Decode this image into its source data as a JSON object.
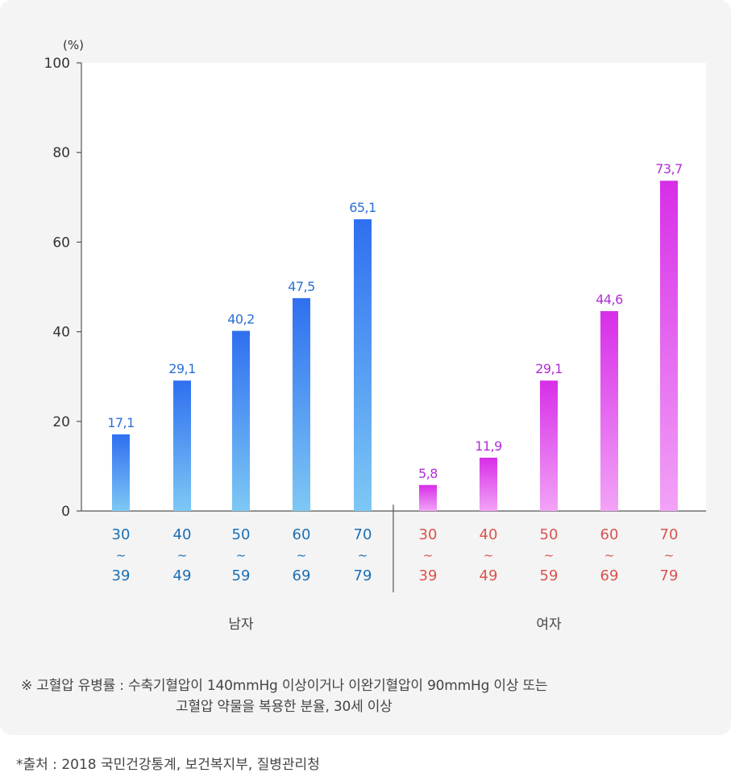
{
  "chart_data": {
    "type": "bar",
    "unit_label": "(%)",
    "ylim": [
      0,
      100
    ],
    "yticks": [
      "0",
      "20",
      "40",
      "60",
      "80",
      "100"
    ],
    "groups": [
      {
        "name": "남자",
        "color_top": "#2f6ff0",
        "color_bottom": "#7dc8f5",
        "label_color": "#2b6fd6",
        "tick_color": "#1a6fb5",
        "categories": [
          {
            "top": "30",
            "sep": "~",
            "bottom": "39"
          },
          {
            "top": "40",
            "sep": "~",
            "bottom": "49"
          },
          {
            "top": "50",
            "sep": "~",
            "bottom": "59"
          },
          {
            "top": "60",
            "sep": "~",
            "bottom": "69"
          },
          {
            "top": "70",
            "sep": "~",
            "bottom": "79"
          }
        ],
        "values": [
          17.1,
          29.1,
          40.2,
          47.5,
          65.1
        ],
        "value_labels": [
          "17,1",
          "29,1",
          "40,2",
          "47,5",
          "65,1"
        ]
      },
      {
        "name": "여자",
        "color_top": "#d72ee8",
        "color_bottom": "#f2a3f7",
        "label_color": "#b22ed6",
        "tick_color": "#d9534f",
        "categories": [
          {
            "top": "30",
            "sep": "~",
            "bottom": "39"
          },
          {
            "top": "40",
            "sep": "~",
            "bottom": "49"
          },
          {
            "top": "50",
            "sep": "~",
            "bottom": "59"
          },
          {
            "top": "60",
            "sep": "~",
            "bottom": "69"
          },
          {
            "top": "70",
            "sep": "~",
            "bottom": "79"
          }
        ],
        "values": [
          5.8,
          11.9,
          29.1,
          44.6,
          73.7
        ],
        "value_labels": [
          "5,8",
          "11,9",
          "29,1",
          "44,6",
          "73,7"
        ]
      }
    ],
    "grid": false
  },
  "note_line1": "※  고혈압 유병률 : 수축기혈압이 140mmHg 이상이거나 이완기혈압이 90mmHg 이상 또는",
  "note_line2": "고혈압 약물을 복용한 분율, 30세 이상",
  "source": "*출처 : 2018 국민건강통계, 보건복지부, 질병관리청"
}
